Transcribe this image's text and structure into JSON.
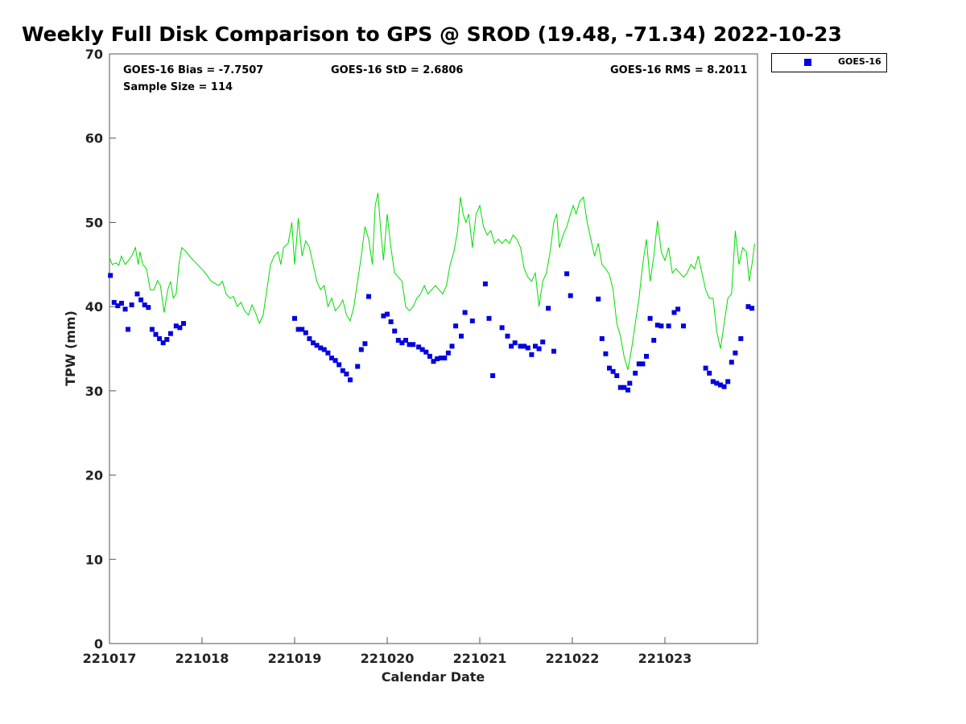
{
  "chart_data": {
    "type": "line+scatter",
    "title": "Weekly Full Disk Comparison to GPS @ SROD (19.48, -71.34) 2022-10-23",
    "xlabel": "Calendar Date",
    "ylabel": "TPW (mm)",
    "xlim": [
      0,
      7
    ],
    "ylim": [
      0,
      70
    ],
    "x_ticks": [
      0,
      1,
      2,
      3,
      4,
      5,
      6
    ],
    "x_tick_labels": [
      "221017",
      "221018",
      "221019",
      "221020",
      "221021",
      "221022",
      "221023"
    ],
    "y_ticks": [
      0,
      10,
      20,
      30,
      40,
      50,
      60,
      70
    ],
    "y_tick_labels": [
      "0",
      "10",
      "20",
      "30",
      "40",
      "50",
      "60",
      "70"
    ],
    "stats": {
      "bias": "GOES-16 Bias = -7.7507",
      "std": "GOES-16 StD = 2.6806",
      "rms": "GOES-16 RMS = 8.2011",
      "sample": "Sample Size = 114"
    },
    "legend": {
      "label": "GOES-16",
      "position": "top-right, outside plot"
    },
    "colors": {
      "gps_line": "#00dd00",
      "goes_points": "#0000e0"
    },
    "series": [
      {
        "name": "GPS",
        "type": "line",
        "points": [
          [
            0.0,
            45.8
          ],
          [
            0.03,
            45.0
          ],
          [
            0.07,
            45.2
          ],
          [
            0.1,
            44.9
          ],
          [
            0.13,
            46.0
          ],
          [
            0.17,
            45.0
          ],
          [
            0.2,
            45.4
          ],
          [
            0.24,
            46.0
          ],
          [
            0.28,
            47.0
          ],
          [
            0.31,
            45.0
          ],
          [
            0.33,
            46.5
          ],
          [
            0.36,
            45.0
          ],
          [
            0.4,
            44.5
          ],
          [
            0.44,
            42.0
          ],
          [
            0.48,
            42.0
          ],
          [
            0.52,
            43.1
          ],
          [
            0.55,
            42.5
          ],
          [
            0.59,
            39.3
          ],
          [
            0.63,
            42.0
          ],
          [
            0.66,
            43.0
          ],
          [
            0.69,
            41.0
          ],
          [
            0.72,
            41.5
          ],
          [
            0.75,
            45.0
          ],
          [
            0.78,
            47.0
          ],
          [
            0.82,
            46.6
          ],
          [
            0.88,
            45.8
          ],
          [
            0.95,
            45.0
          ],
          [
            1.02,
            44.2
          ],
          [
            1.1,
            43.0
          ],
          [
            1.18,
            42.5
          ],
          [
            1.22,
            43.0
          ],
          [
            1.26,
            41.5
          ],
          [
            1.3,
            41.0
          ],
          [
            1.34,
            41.2
          ],
          [
            1.38,
            40.0
          ],
          [
            1.42,
            40.5
          ],
          [
            1.46,
            39.5
          ],
          [
            1.5,
            39.0
          ],
          [
            1.54,
            40.2
          ],
          [
            1.58,
            39.2
          ],
          [
            1.62,
            38.0
          ],
          [
            1.66,
            39.0
          ],
          [
            1.7,
            42.0
          ],
          [
            1.74,
            45.0
          ],
          [
            1.78,
            46.0
          ],
          [
            1.82,
            46.5
          ],
          [
            1.85,
            45.0
          ],
          [
            1.88,
            47.0
          ],
          [
            1.93,
            47.5
          ],
          [
            1.97,
            50.0
          ],
          [
            2.0,
            45.0
          ],
          [
            2.04,
            50.5
          ],
          [
            2.08,
            46.0
          ],
          [
            2.12,
            47.8
          ],
          [
            2.16,
            47.0
          ],
          [
            2.2,
            45.0
          ],
          [
            2.24,
            43.0
          ],
          [
            2.28,
            42.0
          ],
          [
            2.32,
            42.5
          ],
          [
            2.36,
            40.0
          ],
          [
            2.4,
            41.0
          ],
          [
            2.44,
            39.5
          ],
          [
            2.48,
            40.0
          ],
          [
            2.52,
            40.8
          ],
          [
            2.56,
            39.0
          ],
          [
            2.6,
            38.3
          ],
          [
            2.64,
            40.0
          ],
          [
            2.68,
            43.0
          ],
          [
            2.72,
            46.0
          ],
          [
            2.76,
            49.5
          ],
          [
            2.8,
            48.0
          ],
          [
            2.84,
            45.0
          ],
          [
            2.87,
            52.0
          ],
          [
            2.9,
            53.5
          ],
          [
            2.93,
            49.0
          ],
          [
            2.96,
            45.5
          ],
          [
            3.0,
            51.0
          ],
          [
            3.04,
            47.0
          ],
          [
            3.08,
            44.0
          ],
          [
            3.12,
            43.5
          ],
          [
            3.16,
            43.0
          ],
          [
            3.2,
            40.0
          ],
          [
            3.24,
            39.5
          ],
          [
            3.28,
            40.0
          ],
          [
            3.32,
            41.0
          ],
          [
            3.36,
            41.5
          ],
          [
            3.4,
            42.5
          ],
          [
            3.44,
            41.5
          ],
          [
            3.48,
            42.0
          ],
          [
            3.52,
            42.5
          ],
          [
            3.56,
            42.0
          ],
          [
            3.6,
            41.5
          ],
          [
            3.64,
            42.5
          ],
          [
            3.68,
            45.0
          ],
          [
            3.72,
            46.5
          ],
          [
            3.76,
            49.0
          ],
          [
            3.79,
            53.0
          ],
          [
            3.82,
            51.0
          ],
          [
            3.85,
            50.0
          ],
          [
            3.88,
            51.0
          ],
          [
            3.92,
            47.0
          ],
          [
            3.96,
            51.0
          ],
          [
            4.0,
            52.0
          ],
          [
            4.04,
            49.5
          ],
          [
            4.08,
            48.5
          ],
          [
            4.12,
            49.0
          ],
          [
            4.16,
            47.5
          ],
          [
            4.2,
            48.0
          ],
          [
            4.24,
            47.5
          ],
          [
            4.28,
            48.0
          ],
          [
            4.32,
            47.5
          ],
          [
            4.36,
            48.5
          ],
          [
            4.4,
            48.0
          ],
          [
            4.44,
            47.0
          ],
          [
            4.48,
            44.5
          ],
          [
            4.52,
            43.5
          ],
          [
            4.56,
            43.0
          ],
          [
            4.6,
            44.0
          ],
          [
            4.64,
            40.0
          ],
          [
            4.68,
            43.0
          ],
          [
            4.72,
            44.0
          ],
          [
            4.76,
            46.5
          ],
          [
            4.8,
            50.0
          ],
          [
            4.83,
            51.0
          ],
          [
            4.86,
            47.0
          ],
          [
            4.9,
            48.5
          ],
          [
            4.94,
            49.5
          ],
          [
            4.98,
            51.0
          ],
          [
            5.01,
            52.0
          ],
          [
            5.04,
            51.0
          ],
          [
            5.08,
            52.5
          ],
          [
            5.12,
            53.0
          ],
          [
            5.16,
            50.0
          ],
          [
            5.2,
            48.0
          ],
          [
            5.24,
            46.0
          ],
          [
            5.28,
            47.5
          ],
          [
            5.32,
            45.0
          ],
          [
            5.36,
            44.5
          ],
          [
            5.4,
            43.8
          ],
          [
            5.44,
            42.0
          ],
          [
            5.48,
            38.0
          ],
          [
            5.52,
            36.5
          ],
          [
            5.56,
            34.0
          ],
          [
            5.6,
            32.5
          ],
          [
            5.64,
            35.0
          ],
          [
            5.68,
            38.0
          ],
          [
            5.72,
            41.0
          ],
          [
            5.76,
            45.0
          ],
          [
            5.8,
            48.0
          ],
          [
            5.84,
            43.0
          ],
          [
            5.88,
            46.0
          ],
          [
            5.92,
            50.2
          ],
          [
            5.96,
            46.5
          ],
          [
            6.0,
            45.5
          ],
          [
            6.04,
            47.0
          ],
          [
            6.08,
            44.0
          ],
          [
            6.12,
            44.5
          ],
          [
            6.16,
            44.0
          ],
          [
            6.2,
            43.5
          ],
          [
            6.24,
            44.0
          ],
          [
            6.28,
            45.0
          ],
          [
            6.32,
            44.5
          ],
          [
            6.36,
            46.0
          ],
          [
            6.4,
            44.0
          ],
          [
            6.44,
            42.0
          ],
          [
            6.48,
            41.0
          ],
          [
            6.52,
            41.0
          ],
          [
            6.56,
            37.0
          ],
          [
            6.6,
            35.0
          ],
          [
            6.64,
            38.0
          ],
          [
            6.68,
            41.0
          ],
          [
            6.72,
            41.5
          ],
          [
            6.76,
            49.0
          ],
          [
            6.8,
            45.0
          ],
          [
            6.84,
            47.0
          ],
          [
            6.88,
            46.5
          ],
          [
            6.91,
            43.0
          ],
          [
            6.94,
            45.0
          ],
          [
            6.97,
            47.5
          ]
        ]
      },
      {
        "name": "GOES-16",
        "type": "scatter",
        "points": [
          [
            0.01,
            43.7
          ],
          [
            0.05,
            40.5
          ],
          [
            0.09,
            40.1
          ],
          [
            0.13,
            40.4
          ],
          [
            0.17,
            39.7
          ],
          [
            0.2,
            37.3
          ],
          [
            0.24,
            40.2
          ],
          [
            0.3,
            41.5
          ],
          [
            0.34,
            40.8
          ],
          [
            0.38,
            40.2
          ],
          [
            0.42,
            39.9
          ],
          [
            0.46,
            37.3
          ],
          [
            0.5,
            36.7
          ],
          [
            0.54,
            36.2
          ],
          [
            0.58,
            35.7
          ],
          [
            0.62,
            36.1
          ],
          [
            0.66,
            36.8
          ],
          [
            0.72,
            37.7
          ],
          [
            0.76,
            37.5
          ],
          [
            0.8,
            38.0
          ],
          [
            2.0,
            38.6
          ],
          [
            2.04,
            37.3
          ],
          [
            2.08,
            37.3
          ],
          [
            2.12,
            36.9
          ],
          [
            2.16,
            36.2
          ],
          [
            2.2,
            35.7
          ],
          [
            2.24,
            35.4
          ],
          [
            2.28,
            35.1
          ],
          [
            2.32,
            34.9
          ],
          [
            2.36,
            34.5
          ],
          [
            2.4,
            33.9
          ],
          [
            2.44,
            33.6
          ],
          [
            2.48,
            33.1
          ],
          [
            2.52,
            32.4
          ],
          [
            2.56,
            32.0
          ],
          [
            2.6,
            31.3
          ],
          [
            2.68,
            32.9
          ],
          [
            2.72,
            34.9
          ],
          [
            2.76,
            35.6
          ],
          [
            2.8,
            41.2
          ],
          [
            2.96,
            38.9
          ],
          [
            3.0,
            39.1
          ],
          [
            3.04,
            38.2
          ],
          [
            3.08,
            37.1
          ],
          [
            3.12,
            36.0
          ],
          [
            3.16,
            35.7
          ],
          [
            3.2,
            36.0
          ],
          [
            3.24,
            35.5
          ],
          [
            3.28,
            35.5
          ],
          [
            3.34,
            35.2
          ],
          [
            3.38,
            34.9
          ],
          [
            3.42,
            34.6
          ],
          [
            3.46,
            34.1
          ],
          [
            3.5,
            33.5
          ],
          [
            3.54,
            33.8
          ],
          [
            3.58,
            33.9
          ],
          [
            3.62,
            33.9
          ],
          [
            3.66,
            34.5
          ],
          [
            3.7,
            35.3
          ],
          [
            3.74,
            37.7
          ],
          [
            3.8,
            36.5
          ],
          [
            3.84,
            39.3
          ],
          [
            3.92,
            38.3
          ],
          [
            4.06,
            42.7
          ],
          [
            4.1,
            38.6
          ],
          [
            4.14,
            31.8
          ],
          [
            4.24,
            37.5
          ],
          [
            4.3,
            36.5
          ],
          [
            4.34,
            35.3
          ],
          [
            4.38,
            35.7
          ],
          [
            4.44,
            35.3
          ],
          [
            4.48,
            35.3
          ],
          [
            4.52,
            35.1
          ],
          [
            4.56,
            34.3
          ],
          [
            4.6,
            35.3
          ],
          [
            4.64,
            35.0
          ],
          [
            4.68,
            35.8
          ],
          [
            4.74,
            39.8
          ],
          [
            4.8,
            34.7
          ],
          [
            4.94,
            43.9
          ],
          [
            4.98,
            41.3
          ],
          [
            5.28,
            40.9
          ],
          [
            5.32,
            36.2
          ],
          [
            5.36,
            34.4
          ],
          [
            5.4,
            32.7
          ],
          [
            5.44,
            32.3
          ],
          [
            5.48,
            31.8
          ],
          [
            5.52,
            30.4
          ],
          [
            5.56,
            30.4
          ],
          [
            5.6,
            30.1
          ],
          [
            5.62,
            30.9
          ],
          [
            5.68,
            32.1
          ],
          [
            5.72,
            33.2
          ],
          [
            5.76,
            33.2
          ],
          [
            5.8,
            34.1
          ],
          [
            5.84,
            38.6
          ],
          [
            5.88,
            36.0
          ],
          [
            5.92,
            37.8
          ],
          [
            5.96,
            37.7
          ],
          [
            6.04,
            37.7
          ],
          [
            6.1,
            39.3
          ],
          [
            6.14,
            39.7
          ],
          [
            6.2,
            37.7
          ],
          [
            6.44,
            32.7
          ],
          [
            6.48,
            32.1
          ],
          [
            6.52,
            31.1
          ],
          [
            6.56,
            30.9
          ],
          [
            6.6,
            30.7
          ],
          [
            6.64,
            30.5
          ],
          [
            6.68,
            31.1
          ],
          [
            6.72,
            33.4
          ],
          [
            6.76,
            34.5
          ],
          [
            6.82,
            36.2
          ],
          [
            6.9,
            40.0
          ],
          [
            6.94,
            39.8
          ]
        ]
      }
    ]
  }
}
